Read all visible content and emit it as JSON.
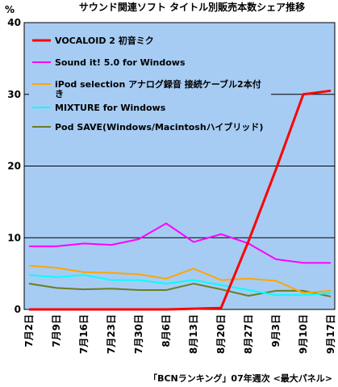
{
  "chart_data": {
    "type": "line",
    "title": "サウンド関連ソフト タイトル別販売本数シェア推移",
    "ylabel": "%",
    "ylim": [
      0,
      40
    ],
    "yticks": [
      0,
      10,
      20,
      30,
      40
    ],
    "grid": true,
    "legend_position": "top-left",
    "source": "「BCNランキング」07年週次 <最大パネル>",
    "categories": [
      "7月2日",
      "7月9日",
      "7月16日",
      "7月23日",
      "7月30日",
      "8月6日",
      "8月13日",
      "8月20日",
      "8月27日",
      "9月3日",
      "9月10日",
      "9月17日"
    ],
    "series": [
      {
        "name": "VOCALOID 2 初音ミク",
        "color": "#ff0000",
        "values": [
          0,
          0,
          0,
          0,
          0,
          0,
          0.1,
          0.2,
          9.5,
          19.5,
          30,
          30.5
        ]
      },
      {
        "name": "Sound it! 5.0 for Windows",
        "color": "#ff00ff",
        "values": [
          8.8,
          8.8,
          9.2,
          9.0,
          9.8,
          12.0,
          9.4,
          10.5,
          9.2,
          7.0,
          6.5,
          6.5
        ]
      },
      {
        "name": "iPod selection アナログ録音 接続ケーブル2本付き",
        "color": "#ffa500",
        "values": [
          6.1,
          5.8,
          5.2,
          5.1,
          4.9,
          4.3,
          5.7,
          4.1,
          4.3,
          4.0,
          2.3,
          2.6
        ]
      },
      {
        "name": "MIXTURE for Windows",
        "color": "#00ffff",
        "values": [
          4.8,
          4.5,
          4.8,
          4.1,
          4.1,
          3.6,
          4.1,
          3.4,
          2.7,
          2.0,
          2.0,
          2.3
        ]
      },
      {
        "name": "Pod SAVE(Windows/Macintoshハイブリッド)",
        "color": "#6b7d1e",
        "values": [
          3.6,
          3.0,
          2.8,
          2.9,
          2.7,
          2.7,
          3.6,
          2.8,
          1.9,
          2.6,
          2.6,
          1.8
        ]
      }
    ]
  }
}
